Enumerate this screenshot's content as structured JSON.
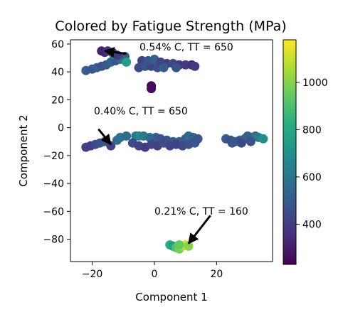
{
  "chart_data": {
    "type": "scatter",
    "title": "Colored by Fatigue Strength (MPa)",
    "xlabel": "Component 1",
    "ylabel": "Component 2",
    "xlim": [
      -27,
      38
    ],
    "ylim": [
      -96,
      63
    ],
    "xticks": [
      -20,
      0,
      20
    ],
    "yticks": [
      60,
      40,
      20,
      0,
      -20,
      -40,
      -60,
      -80
    ],
    "xtick_labels": [
      "−20",
      "0",
      "20"
    ],
    "ytick_labels": [
      "60",
      "40",
      "20",
      "0",
      "−20",
      "−40",
      "−60",
      "−80"
    ],
    "grid": false,
    "colorbar": {
      "colormap": "viridis",
      "range": [
        230,
        1180
      ],
      "ticks": [
        400,
        600,
        800,
        1000
      ],
      "tick_labels": [
        "400",
        "600",
        "800",
        "1000"
      ]
    },
    "annotations": [
      {
        "text": "0.54% C,  TT = 650",
        "tail": [
          -9,
          53
        ],
        "head": [
          -16,
          55
        ]
      },
      {
        "text": "0.40% C,  TT = 650",
        "tail": [
          -18,
          -1
        ],
        "head": [
          -14,
          -12
        ]
      },
      {
        "text": "0.21% C,  TT = 160",
        "tail": [
          18,
          -63
        ],
        "head": [
          11,
          -83
        ]
      }
    ],
    "points": [
      {
        "x": -22,
        "y": 41,
        "v": 500
      },
      {
        "x": -20,
        "y": 42,
        "v": 480
      },
      {
        "x": -18.5,
        "y": 43,
        "v": 520
      },
      {
        "x": -17,
        "y": 44,
        "v": 460
      },
      {
        "x": -15.5,
        "y": 45,
        "v": 490
      },
      {
        "x": -14,
        "y": 47,
        "v": 530
      },
      {
        "x": -12.5,
        "y": 48,
        "v": 470
      },
      {
        "x": -11,
        "y": 49,
        "v": 560
      },
      {
        "x": -9.5,
        "y": 51,
        "v": 500
      },
      {
        "x": -13,
        "y": 52,
        "v": 610
      },
      {
        "x": -16,
        "y": 54,
        "v": 340
      },
      {
        "x": -17,
        "y": 55,
        "v": 320
      },
      {
        "x": -15,
        "y": 55,
        "v": 360
      },
      {
        "x": -13.5,
        "y": 54,
        "v": 420
      },
      {
        "x": -12,
        "y": 52,
        "v": 390
      },
      {
        "x": -9,
        "y": 47,
        "v": 760
      },
      {
        "x": -4,
        "y": 48,
        "v": 420
      },
      {
        "x": -5,
        "y": 43,
        "v": 440
      },
      {
        "x": -3,
        "y": 44,
        "v": 470
      },
      {
        "x": -1,
        "y": 44,
        "v": 430
      },
      {
        "x": 1,
        "y": 43,
        "v": 460
      },
      {
        "x": -2,
        "y": 48,
        "v": 480
      },
      {
        "x": 0,
        "y": 49,
        "v": 520
      },
      {
        "x": 2,
        "y": 47,
        "v": 430
      },
      {
        "x": 4,
        "y": 46,
        "v": 410
      },
      {
        "x": 6,
        "y": 46,
        "v": 440
      },
      {
        "x": 8,
        "y": 45,
        "v": 380
      },
      {
        "x": 10,
        "y": 45,
        "v": 400
      },
      {
        "x": 12,
        "y": 45,
        "v": 360
      },
      {
        "x": 13,
        "y": 44,
        "v": 390
      },
      {
        "x": 3,
        "y": 43,
        "v": 510
      },
      {
        "x": 7,
        "y": 43,
        "v": 470
      },
      {
        "x": -1,
        "y": 30,
        "v": 240
      },
      {
        "x": -1,
        "y": 28,
        "v": 260
      },
      {
        "x": -22,
        "y": -14,
        "v": 420
      },
      {
        "x": -20.5,
        "y": -13,
        "v": 400
      },
      {
        "x": -19,
        "y": -12,
        "v": 440
      },
      {
        "x": -17.5,
        "y": -11,
        "v": 460
      },
      {
        "x": -16,
        "y": -10,
        "v": 490
      },
      {
        "x": -14,
        "y": -13,
        "v": 420
      },
      {
        "x": -12,
        "y": -9,
        "v": 540
      },
      {
        "x": -11,
        "y": -7,
        "v": 580
      },
      {
        "x": -9,
        "y": -6,
        "v": 560
      },
      {
        "x": -6,
        "y": -6,
        "v": 600
      },
      {
        "x": -5,
        "y": -6,
        "v": 680
      },
      {
        "x": -3.5,
        "y": -6,
        "v": 620
      },
      {
        "x": -1.5,
        "y": -7,
        "v": 560
      },
      {
        "x": 0.5,
        "y": -7,
        "v": 520
      },
      {
        "x": 2,
        "y": -8,
        "v": 480
      },
      {
        "x": 4,
        "y": -9,
        "v": 460
      },
      {
        "x": 6,
        "y": -10,
        "v": 500
      },
      {
        "x": 8,
        "y": -10,
        "v": 540
      },
      {
        "x": 10,
        "y": -8,
        "v": 500
      },
      {
        "x": 11,
        "y": -6,
        "v": 560
      },
      {
        "x": 12.5,
        "y": -7,
        "v": 520
      },
      {
        "x": 14,
        "y": -8,
        "v": 480
      },
      {
        "x": -7,
        "y": -11,
        "v": 440
      },
      {
        "x": -5,
        "y": -13,
        "v": 420
      },
      {
        "x": -3,
        "y": -14,
        "v": 400
      },
      {
        "x": -1,
        "y": -12,
        "v": 430
      },
      {
        "x": 1,
        "y": -13,
        "v": 410
      },
      {
        "x": 3,
        "y": -11,
        "v": 450
      },
      {
        "x": 5,
        "y": -13,
        "v": 430
      },
      {
        "x": 7,
        "y": -12,
        "v": 410
      },
      {
        "x": 9,
        "y": -13,
        "v": 440
      },
      {
        "x": 11,
        "y": -12,
        "v": 460
      },
      {
        "x": 13,
        "y": -11,
        "v": 480
      },
      {
        "x": 23,
        "y": -8,
        "v": 500
      },
      {
        "x": 24.5,
        "y": -9,
        "v": 460
      },
      {
        "x": 26,
        "y": -10,
        "v": 520
      },
      {
        "x": 27.5,
        "y": -9,
        "v": 480
      },
      {
        "x": 29,
        "y": -8,
        "v": 540
      },
      {
        "x": 30,
        "y": -6,
        "v": 520
      },
      {
        "x": 31.5,
        "y": -7,
        "v": 500
      },
      {
        "x": 32.5,
        "y": -6,
        "v": 580
      },
      {
        "x": 33.5,
        "y": -7,
        "v": 620
      },
      {
        "x": 35,
        "y": -8,
        "v": 700
      },
      {
        "x": 31,
        "y": -10,
        "v": 460
      },
      {
        "x": 28,
        "y": -11,
        "v": 440
      },
      {
        "x": 25,
        "y": -11,
        "v": 480
      },
      {
        "x": 5,
        "y": -84,
        "v": 820
      },
      {
        "x": 6,
        "y": -85,
        "v": 760
      },
      {
        "x": 7,
        "y": -86,
        "v": 900
      },
      {
        "x": 8,
        "y": -87,
        "v": 980
      },
      {
        "x": 9,
        "y": -85,
        "v": 1050
      },
      {
        "x": 10,
        "y": -84,
        "v": 1120
      },
      {
        "x": 11,
        "y": -85,
        "v": 1000
      },
      {
        "x": 8,
        "y": -84,
        "v": 950
      }
    ]
  }
}
